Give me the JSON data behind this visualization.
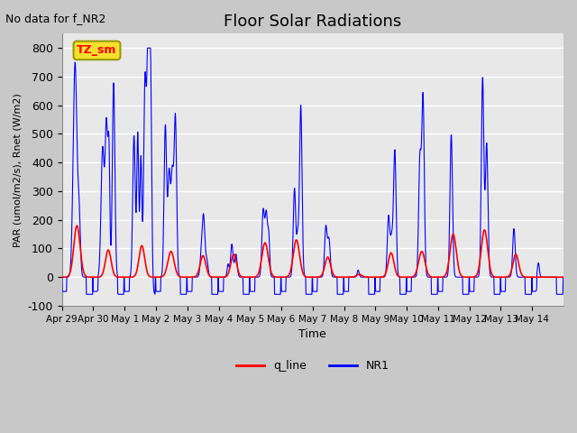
{
  "title": "Floor Solar Radiations",
  "subtitle": "No data for f_NR2",
  "xlabel": "Time",
  "ylabel": "PAR (umol/m2/s), Rnet (W/m2)",
  "ylim": [
    -100,
    850
  ],
  "yticks": [
    -100,
    0,
    100,
    200,
    300,
    400,
    500,
    600,
    700,
    800
  ],
  "xtick_labels": [
    "Apr 29",
    "Apr 30",
    "May 1",
    "May 2",
    "May 3",
    "May 4",
    "May 5",
    "May 6",
    "May 7",
    "May 8",
    "May 9",
    "May 10",
    "May 11",
    "May 12",
    "May 13",
    "May 14"
  ],
  "n_days": 16,
  "legend_labels": [
    "q_line",
    "NR1"
  ],
  "tz_label": "TZ_sm",
  "line_color_red": "#ff0000",
  "line_color_blue": "#0000ff",
  "fig_facecolor": "#c8c8c8",
  "ax_facecolor": "#e8e8e8"
}
